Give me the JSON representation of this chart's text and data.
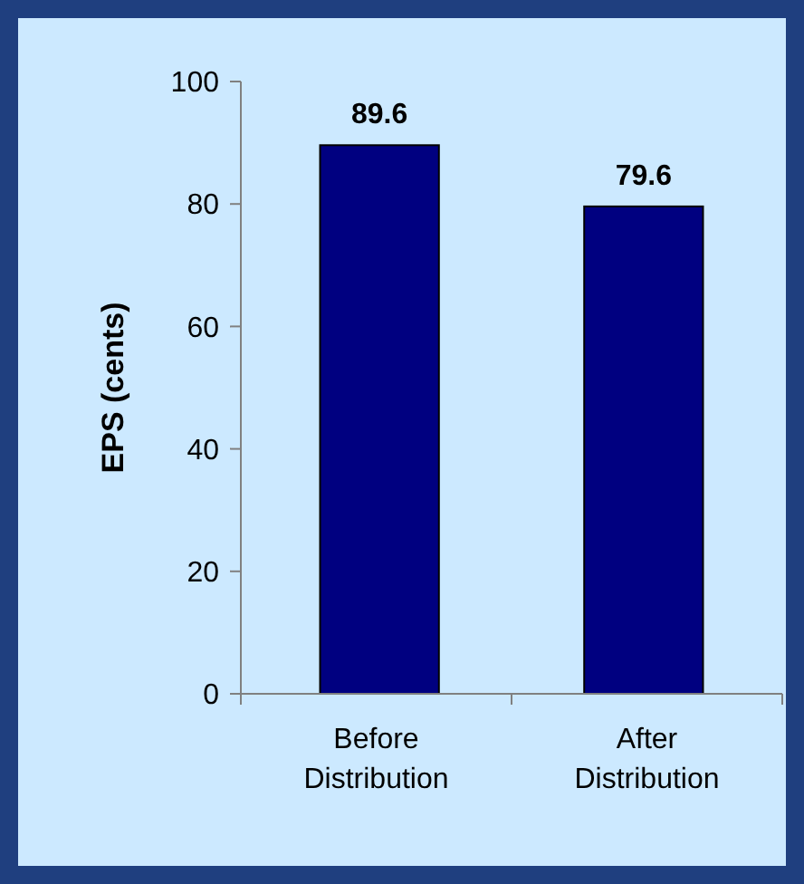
{
  "chart_data": {
    "type": "bar",
    "ylabel": "EPS (cents)",
    "categories": [
      "Before Distribution",
      "After Distribution"
    ],
    "values": [
      89.6,
      79.6
    ],
    "color": "#000080",
    "ylim": [
      0,
      100
    ],
    "yticks": [
      0,
      20,
      40,
      60,
      80,
      100
    ],
    "data_labels": true,
    "grid": false
  }
}
